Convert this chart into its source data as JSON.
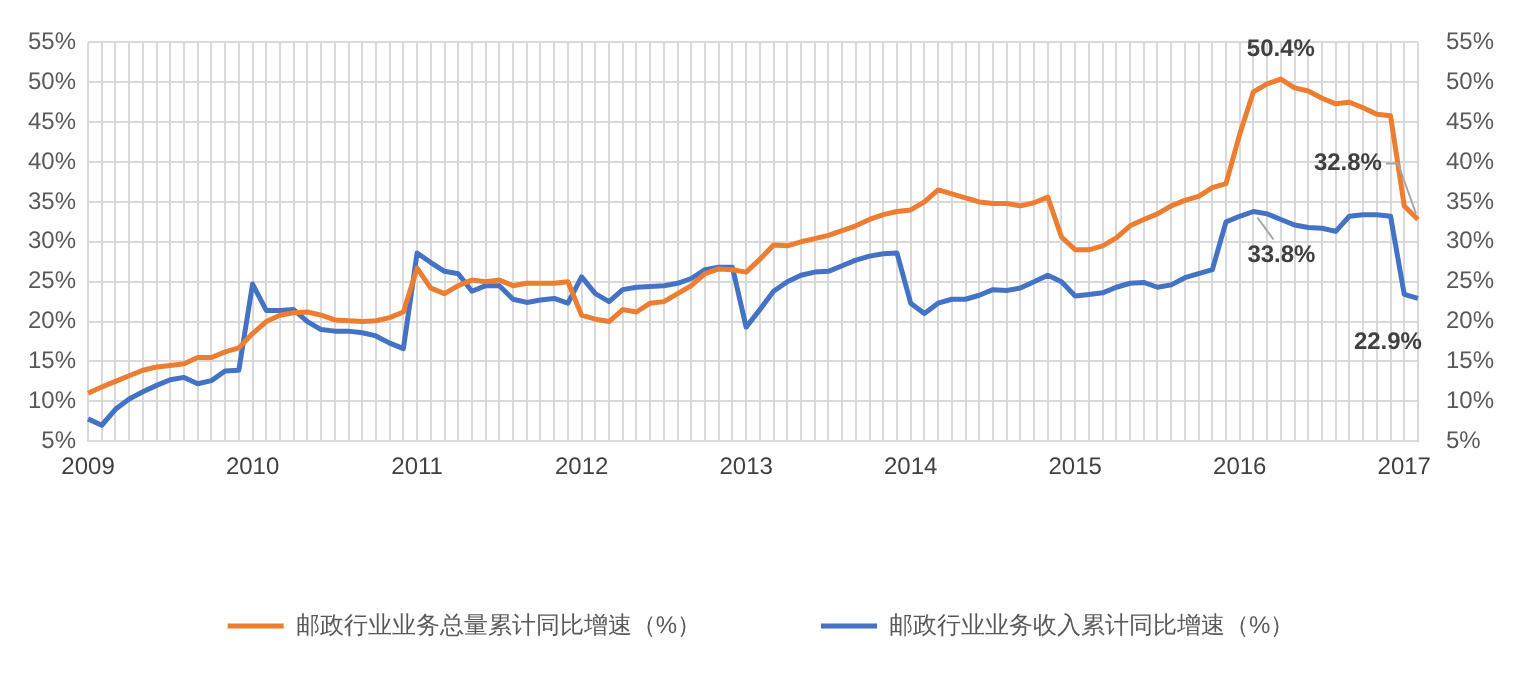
{
  "chart_data": {
    "type": "line",
    "categories": [
      "2009",
      null,
      null,
      null,
      null,
      null,
      null,
      null,
      null,
      null,
      null,
      null,
      "2010",
      null,
      null,
      null,
      null,
      null,
      null,
      null,
      null,
      null,
      null,
      null,
      "2011",
      null,
      null,
      null,
      null,
      null,
      null,
      null,
      null,
      null,
      null,
      null,
      "2012",
      null,
      null,
      null,
      null,
      null,
      null,
      null,
      null,
      null,
      null,
      null,
      "2013",
      null,
      null,
      null,
      null,
      null,
      null,
      null,
      null,
      null,
      null,
      null,
      "2014",
      null,
      null,
      null,
      null,
      null,
      null,
      null,
      null,
      null,
      null,
      null,
      "2015",
      null,
      null,
      null,
      null,
      null,
      null,
      null,
      null,
      null,
      null,
      null,
      "2016",
      null,
      null,
      null,
      null,
      null,
      null,
      null,
      null,
      null,
      null,
      null,
      "2017",
      null
    ],
    "series": [
      {
        "name": "邮政行业业务总量累计同比增速（%）",
        "color": "#ed7d31",
        "values": [
          11.0,
          11.8,
          12.5,
          13.2,
          13.9,
          14.3,
          14.5,
          14.7,
          15.5,
          15.5,
          16.2,
          16.7,
          18.5,
          20.0,
          20.8,
          21.1,
          21.2,
          20.8,
          20.2,
          20.1,
          20.0,
          20.1,
          20.5,
          21.2,
          26.7,
          24.2,
          23.5,
          24.5,
          25.2,
          25.0,
          25.2,
          24.5,
          24.8,
          24.8,
          24.8,
          25.0,
          20.8,
          20.3,
          20.0,
          21.5,
          21.2,
          22.3,
          22.5,
          23.5,
          24.5,
          26.0,
          26.6,
          26.5,
          26.2,
          27.8,
          29.6,
          29.5,
          30.0,
          30.4,
          30.8,
          31.4,
          32.0,
          32.8,
          33.4,
          33.8,
          34.0,
          35.0,
          36.5,
          36.0,
          35.5,
          35.0,
          34.8,
          34.8,
          34.5,
          34.9,
          35.6,
          30.6,
          29.0,
          29.0,
          29.5,
          30.5,
          32.0,
          32.8,
          33.5,
          34.5,
          35.2,
          35.7,
          36.8,
          37.3,
          43.5,
          48.8,
          49.8,
          50.4,
          49.3,
          48.9,
          48.0,
          47.3,
          47.5,
          46.8,
          46.0,
          45.8,
          34.5,
          32.8
        ],
        "value_labels": [
          null,
          null,
          null,
          null,
          null,
          null,
          null,
          null,
          null,
          null,
          null,
          null,
          null,
          null,
          null,
          null,
          null,
          null,
          null,
          null,
          null,
          null,
          null,
          null,
          null,
          null,
          null,
          null,
          null,
          null,
          null,
          null,
          null,
          null,
          null,
          null,
          null,
          null,
          null,
          null,
          null,
          null,
          null,
          null,
          null,
          null,
          null,
          null,
          null,
          null,
          null,
          null,
          null,
          null,
          null,
          null,
          null,
          null,
          null,
          null,
          null,
          null,
          null,
          null,
          null,
          null,
          null,
          null,
          null,
          null,
          null,
          null,
          null,
          null,
          null,
          null,
          null,
          null,
          null,
          null,
          null,
          null,
          null,
          null,
          null,
          null,
          null,
          "50.4%",
          null,
          null,
          null,
          null,
          null,
          null,
          null,
          null,
          null,
          "32.8%"
        ]
      },
      {
        "name": "邮政行业业务收入累计同比增速（%）",
        "color": "#4472c4",
        "values": [
          7.8,
          7.0,
          9.0,
          10.3,
          11.2,
          12.0,
          12.7,
          13.0,
          12.2,
          12.6,
          13.8,
          13.9,
          24.7,
          21.4,
          21.4,
          21.5,
          20.0,
          19.0,
          18.8,
          18.8,
          18.6,
          18.2,
          17.3,
          16.6,
          28.6,
          27.4,
          26.3,
          26.0,
          23.8,
          24.5,
          24.5,
          22.8,
          22.4,
          22.7,
          22.9,
          22.3,
          25.6,
          23.5,
          22.5,
          24.0,
          24.3,
          24.4,
          24.5,
          24.8,
          25.4,
          26.5,
          26.8,
          26.8,
          19.3,
          21.5,
          23.8,
          25.0,
          25.8,
          26.2,
          26.3,
          27.0,
          27.7,
          28.2,
          28.5,
          28.6,
          22.3,
          21.0,
          22.3,
          22.8,
          22.8,
          23.3,
          24.0,
          23.9,
          24.2,
          25.0,
          25.8,
          25.0,
          23.2,
          23.4,
          23.6,
          24.3,
          24.8,
          24.9,
          24.3,
          24.6,
          25.5,
          26.0,
          26.5,
          32.5,
          33.2,
          33.8,
          33.5,
          32.8,
          32.1,
          31.8,
          31.7,
          31.3,
          33.2,
          33.4,
          33.4,
          33.2,
          23.4,
          22.9
        ],
        "value_labels": [
          null,
          null,
          null,
          null,
          null,
          null,
          null,
          null,
          null,
          null,
          null,
          null,
          null,
          null,
          null,
          null,
          null,
          null,
          null,
          null,
          null,
          null,
          null,
          null,
          null,
          null,
          null,
          null,
          null,
          null,
          null,
          null,
          null,
          null,
          null,
          null,
          null,
          null,
          null,
          null,
          null,
          null,
          null,
          null,
          null,
          null,
          null,
          null,
          null,
          null,
          null,
          null,
          null,
          null,
          null,
          null,
          null,
          null,
          null,
          null,
          null,
          null,
          null,
          null,
          null,
          null,
          null,
          null,
          null,
          null,
          null,
          null,
          null,
          null,
          null,
          null,
          null,
          null,
          null,
          null,
          null,
          null,
          null,
          null,
          null,
          "33.8%",
          null,
          null,
          null,
          null,
          null,
          null,
          null,
          null,
          null,
          null,
          null,
          "22.9%"
        ]
      }
    ],
    "ylim": [
      5,
      55
    ],
    "yticks": [
      {
        "value": 5,
        "label": "5%"
      },
      {
        "value": 10,
        "label": "10%"
      },
      {
        "value": 15,
        "label": "15%"
      },
      {
        "value": 20,
        "label": "20%"
      },
      {
        "value": 25,
        "label": "25%"
      },
      {
        "value": 30,
        "label": "30%"
      },
      {
        "value": 35,
        "label": "35%"
      },
      {
        "value": 40,
        "label": "40%"
      },
      {
        "value": 45,
        "label": "45%"
      },
      {
        "value": 50,
        "label": "50%"
      },
      {
        "value": 55,
        "label": "55%"
      }
    ],
    "y2lim": [
      5,
      55
    ],
    "y2ticks": [
      {
        "value": 5,
        "label": "5%"
      },
      {
        "value": 10,
        "label": "10%"
      },
      {
        "value": 15,
        "label": "15%"
      },
      {
        "value": 20,
        "label": "20%"
      },
      {
        "value": 25,
        "label": "25%"
      },
      {
        "value": 30,
        "label": "30%"
      },
      {
        "value": 35,
        "label": "35%"
      },
      {
        "value": 40,
        "label": "40%"
      },
      {
        "value": 45,
        "label": "45%"
      },
      {
        "value": 50,
        "label": "50%"
      },
      {
        "value": 55,
        "label": "55%"
      }
    ],
    "grid": true,
    "legend": "bottom",
    "marker": "none",
    "line_style": "solid"
  }
}
